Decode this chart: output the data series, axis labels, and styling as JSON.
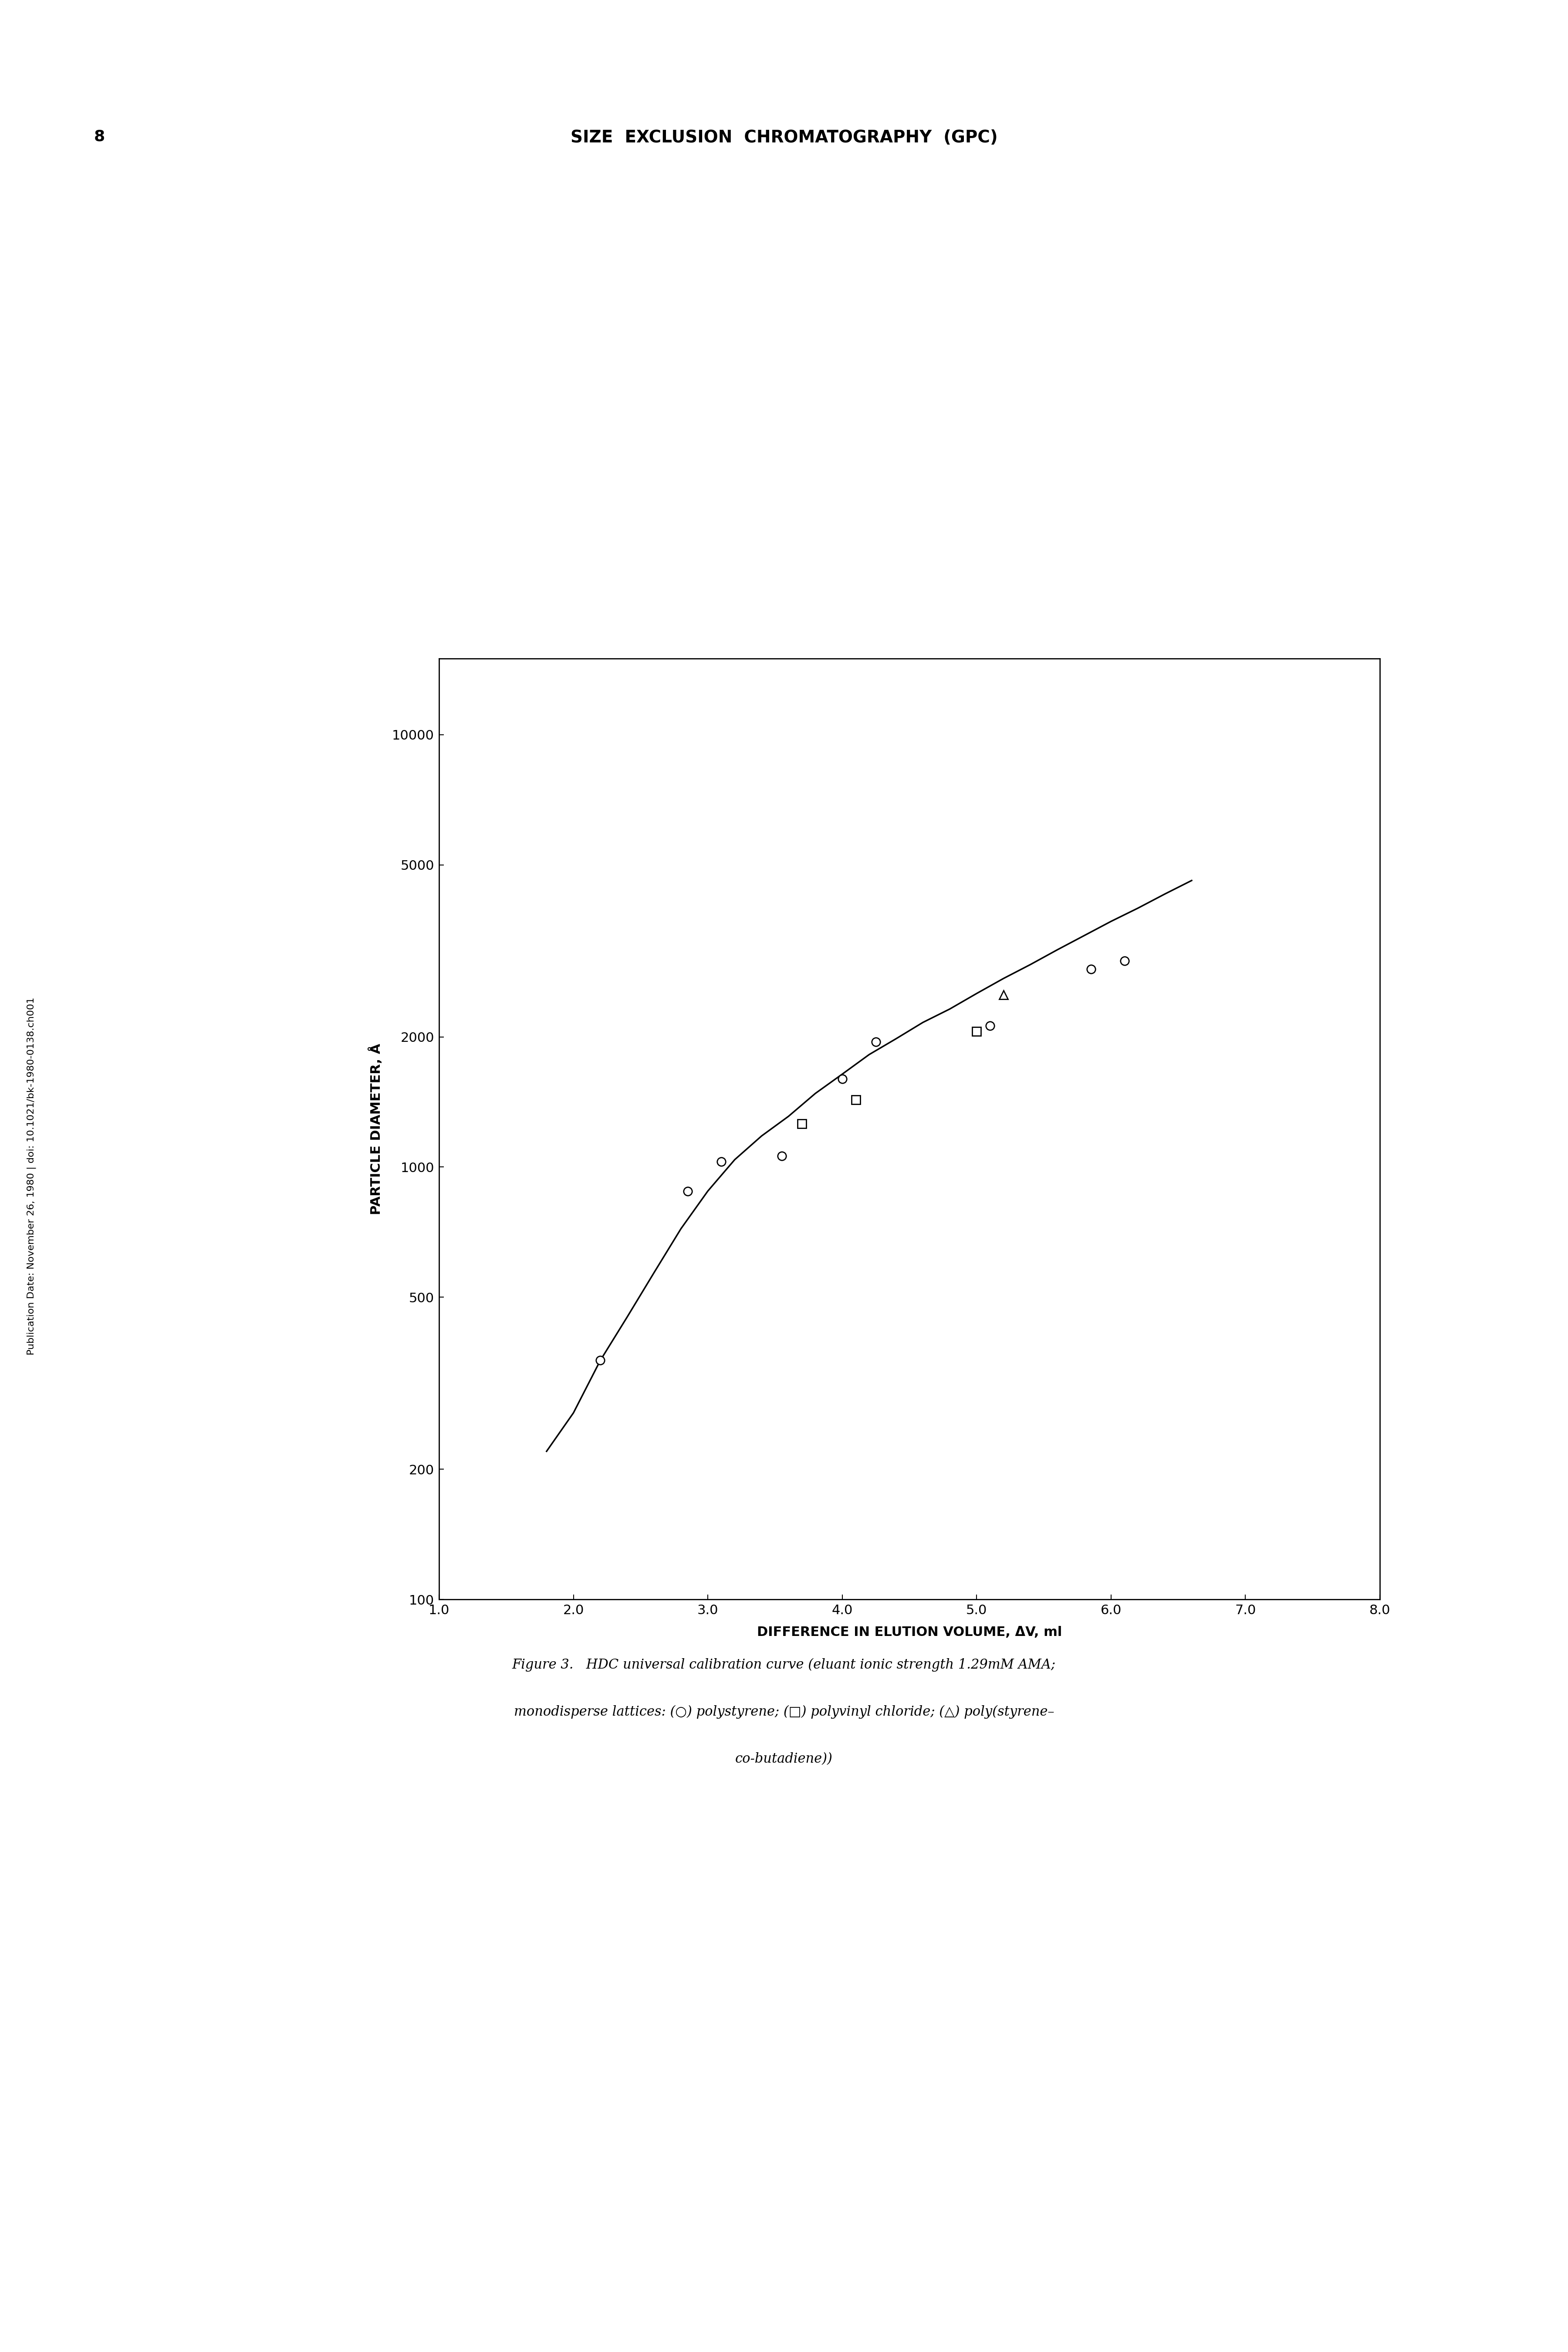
{
  "title_header": "SIZE  EXCLUSION  CHROMATOGRAPHY  (GPC)",
  "page_number": "8",
  "xlabel": "DIFFERENCE IN ELUTION VOLUME, ΔV, ml",
  "ylabel": "PARTICLE DIAMETER, Å",
  "xlim": [
    1.0,
    8.0
  ],
  "ylim": [
    100,
    15000
  ],
  "xticks": [
    1.0,
    2.0,
    3.0,
    4.0,
    5.0,
    6.0,
    7.0,
    8.0
  ],
  "yticks": [
    100,
    200,
    500,
    1000,
    2000,
    5000,
    10000
  ],
  "ytick_labels": [
    "100",
    "200",
    "500",
    "1000",
    "2000",
    "5000",
    "10000"
  ],
  "circle_points": [
    [
      2.2,
      357
    ],
    [
      2.85,
      880
    ],
    [
      3.1,
      1030
    ],
    [
      3.55,
      1060
    ],
    [
      4.0,
      1600
    ],
    [
      4.25,
      1950
    ],
    [
      5.1,
      2120
    ],
    [
      5.85,
      2870
    ],
    [
      6.1,
      3000
    ]
  ],
  "square_points": [
    [
      3.7,
      1260
    ],
    [
      4.1,
      1430
    ],
    [
      5.0,
      2060
    ]
  ],
  "triangle_points": [
    [
      5.2,
      2500
    ]
  ],
  "curve_x": [
    1.8,
    2.0,
    2.2,
    2.4,
    2.6,
    2.8,
    3.0,
    3.2,
    3.4,
    3.6,
    3.8,
    4.0,
    4.2,
    4.4,
    4.6,
    4.8,
    5.0,
    5.2,
    5.4,
    5.6,
    5.8,
    6.0,
    6.2,
    6.4,
    6.6
  ],
  "curve_y": [
    220,
    270,
    357,
    450,
    570,
    720,
    880,
    1040,
    1180,
    1310,
    1480,
    1640,
    1820,
    1980,
    2160,
    2320,
    2520,
    2730,
    2940,
    3180,
    3430,
    3700,
    3970,
    4280,
    4600
  ],
  "figure_caption_line1": "Figure 3.   HDC universal calibration curve (eluant ionic strength 1.29mM AMA;",
  "figure_caption_line2": "monodisperse lattices: (○) polystyrene; (□) polyvinyl chloride; (△) poly(styrene–",
  "figure_caption_line3": "co-butadiene))",
  "sidebar_text": "Publication Date: November 26, 1980 | doi: 10.1021/bk-1980-0138.ch001",
  "background_color": "#ffffff",
  "line_color": "#000000",
  "marker_color": "#000000"
}
